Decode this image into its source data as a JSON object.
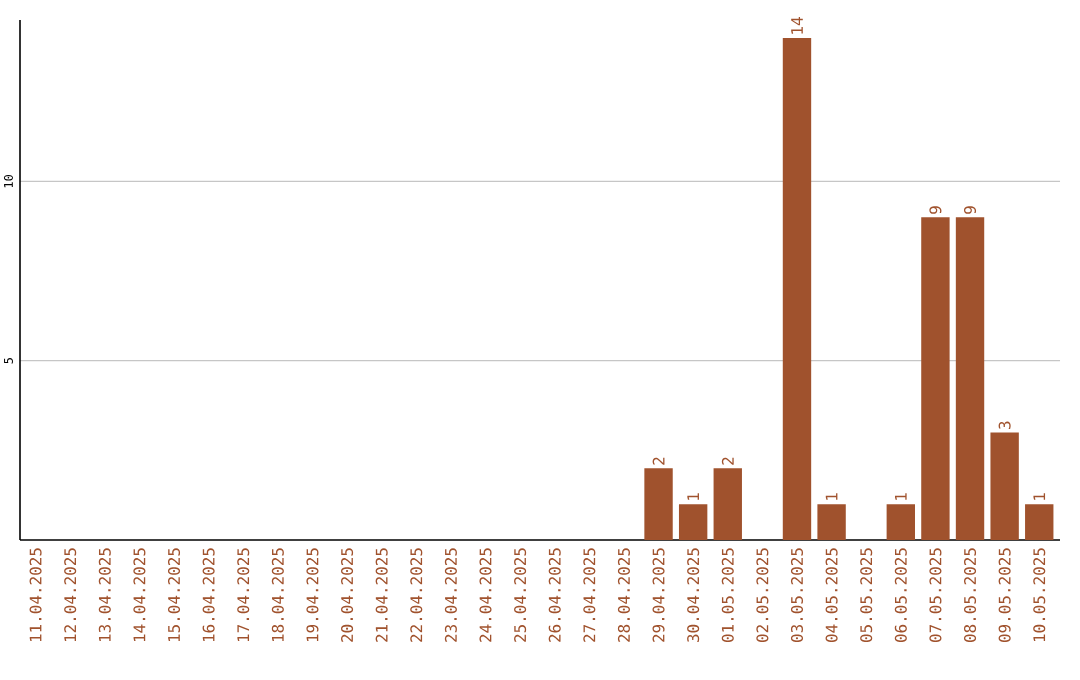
{
  "chart_data": {
    "type": "bar",
    "color": "#a0522d",
    "categories": [
      "11.04.2025",
      "12.04.2025",
      "13.04.2025",
      "14.04.2025",
      "15.04.2025",
      "16.04.2025",
      "17.04.2025",
      "18.04.2025",
      "19.04.2025",
      "20.04.2025",
      "21.04.2025",
      "22.04.2025",
      "23.04.2025",
      "24.04.2025",
      "25.04.2025",
      "26.04.2025",
      "27.04.2025",
      "28.04.2025",
      "29.04.2025",
      "30.04.2025",
      "01.05.2025",
      "02.05.2025",
      "03.05.2025",
      "04.05.2025",
      "05.05.2025",
      "06.05.2025",
      "07.05.2025",
      "08.05.2025",
      "09.05.2025",
      "10.05.2025"
    ],
    "values": [
      0,
      0,
      0,
      0,
      0,
      0,
      0,
      0,
      0,
      0,
      0,
      0,
      0,
      0,
      0,
      0,
      0,
      0,
      2,
      1,
      2,
      0,
      14,
      1,
      0,
      1,
      9,
      9,
      3,
      1
    ],
    "value_labels": [
      null,
      null,
      null,
      null,
      null,
      null,
      null,
      null,
      null,
      null,
      null,
      null,
      null,
      null,
      null,
      null,
      null,
      null,
      "2",
      "1",
      "2",
      null,
      "14",
      "1",
      null,
      "1",
      "9",
      "9",
      "3",
      "1"
    ],
    "ylim": [
      0,
      14.5
    ],
    "yticks": [
      5,
      10
    ],
    "grid": "y"
  }
}
